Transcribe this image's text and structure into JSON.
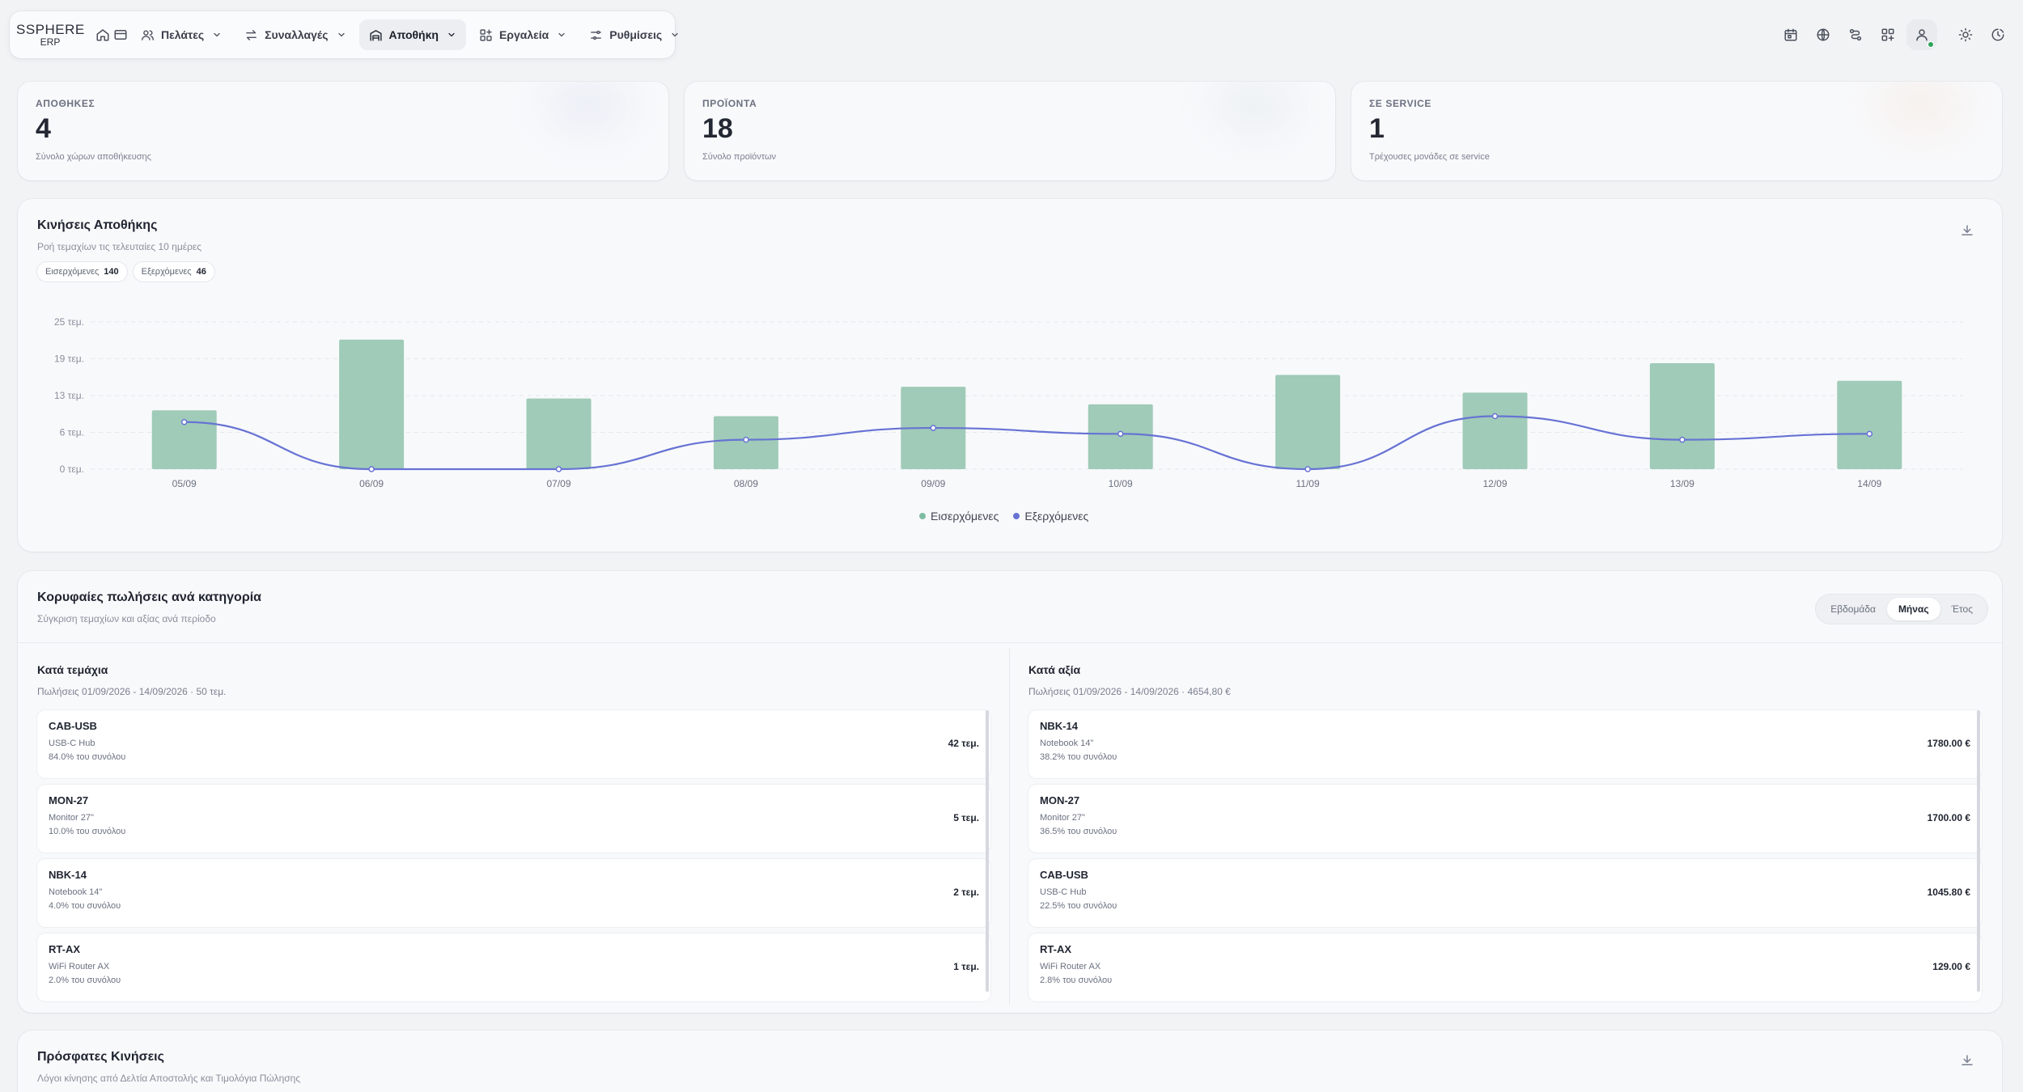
{
  "nav": {
    "logo_line1": "SSPHERE",
    "logo_line2": "ERP",
    "items": [
      {
        "label": "Πελάτες",
        "icon": "users-icon"
      },
      {
        "label": "Συναλλαγές",
        "icon": "swap-arrows-icon"
      },
      {
        "label": "Αποθήκη",
        "icon": "warehouse-icon",
        "active": true
      },
      {
        "label": "Εργαλεία",
        "icon": "tools-grid-icon"
      },
      {
        "label": "Ρυθμίσεις",
        "icon": "sliders-icon"
      }
    ]
  },
  "stats": [
    {
      "label": "ΑΠΟΘΗΚΕΣ",
      "value": "4",
      "sub": "Σύνολο χώρων αποθήκευσης"
    },
    {
      "label": "ΠΡΟΪΟΝΤΑ",
      "value": "18",
      "sub": "Σύνολο προϊόντων"
    },
    {
      "label": "ΣΕ SERVICE",
      "value": "1",
      "sub": "Τρέχουσες μονάδες σε service"
    }
  ],
  "movements": {
    "title": "Κινήσεις Αποθήκης",
    "subtitle": "Ροή τεμαχίων τις τελευταίες 10 ημέρες",
    "chip_in_label": "Εισερχόμενες",
    "chip_in_value": "140",
    "chip_out_label": "Εξερχόμενες",
    "chip_out_value": "46"
  },
  "chart_data": {
    "type": "bar",
    "categories": [
      "05/09",
      "06/09",
      "07/09",
      "08/09",
      "09/09",
      "10/09",
      "11/09",
      "12/09",
      "13/09",
      "14/09"
    ],
    "series": [
      {
        "name": "Εισερχόμενες",
        "type": "bar",
        "color": "#9fcbb8",
        "values": [
          10,
          22,
          12,
          9,
          14,
          11,
          16,
          13,
          18,
          15
        ]
      },
      {
        "name": "Εξερχόμενες",
        "type": "line",
        "color": "#6773d4",
        "values": [
          8,
          0,
          0,
          5,
          7,
          6,
          0,
          9,
          5,
          6
        ]
      }
    ],
    "y_ticks": [
      "25 τεμ.",
      "19 τεμ.",
      "13 τεμ.",
      "6 τεμ.",
      "0 τεμ."
    ],
    "ylim": [
      0,
      25
    ],
    "grid": true,
    "legend": "bottom-center"
  },
  "top_sales": {
    "title": "Κορυφαίες πωλήσεις ανά κατηγορία",
    "subtitle": "Σύγκριση τεμαχίων και αξίας ανά περίοδο",
    "periods": [
      "Εβδομάδα",
      "Μήνας",
      "Έτος"
    ],
    "active_period": "Μήνας",
    "by_qty": {
      "title": "Κατά τεμάχια",
      "sub": "Πωλήσεις 01/09/2026 - 14/09/2026 · 50 τεμ.",
      "rows": [
        {
          "code": "CAB-USB",
          "name": "USB-C Hub",
          "pct": "84.0% του συνόλου",
          "amount": "42 τεμ."
        },
        {
          "code": "MON-27",
          "name": "Monitor 27\"",
          "pct": "10.0% του συνόλου",
          "amount": "5 τεμ."
        },
        {
          "code": "NBK-14",
          "name": "Notebook 14\"",
          "pct": "4.0% του συνόλου",
          "amount": "2 τεμ."
        },
        {
          "code": "RT-AX",
          "name": "WiFi Router AX",
          "pct": "2.0% του συνόλου",
          "amount": "1 τεμ."
        }
      ]
    },
    "by_value": {
      "title": "Κατά αξία",
      "sub": "Πωλήσεις 01/09/2026 - 14/09/2026 · 4654,80 €",
      "rows": [
        {
          "code": "NBK-14",
          "name": "Notebook 14\"",
          "pct": "38.2% του συνόλου",
          "amount": "1780.00 €"
        },
        {
          "code": "MON-27",
          "name": "Monitor 27\"",
          "pct": "36.5% του συνόλου",
          "amount": "1700.00 €"
        },
        {
          "code": "CAB-USB",
          "name": "USB-C Hub",
          "pct": "22.5% του συνόλου",
          "amount": "1045.80 €"
        },
        {
          "code": "RT-AX",
          "name": "WiFi Router AX",
          "pct": "2.8% του συνόλου",
          "amount": "129.00 €"
        }
      ]
    }
  },
  "recent": {
    "title": "Πρόσφατες Κινήσεις",
    "subtitle": "Λόγοι κίνησης από Δελτία Αποστολής και Τιμολόγια Πώλησης"
  }
}
